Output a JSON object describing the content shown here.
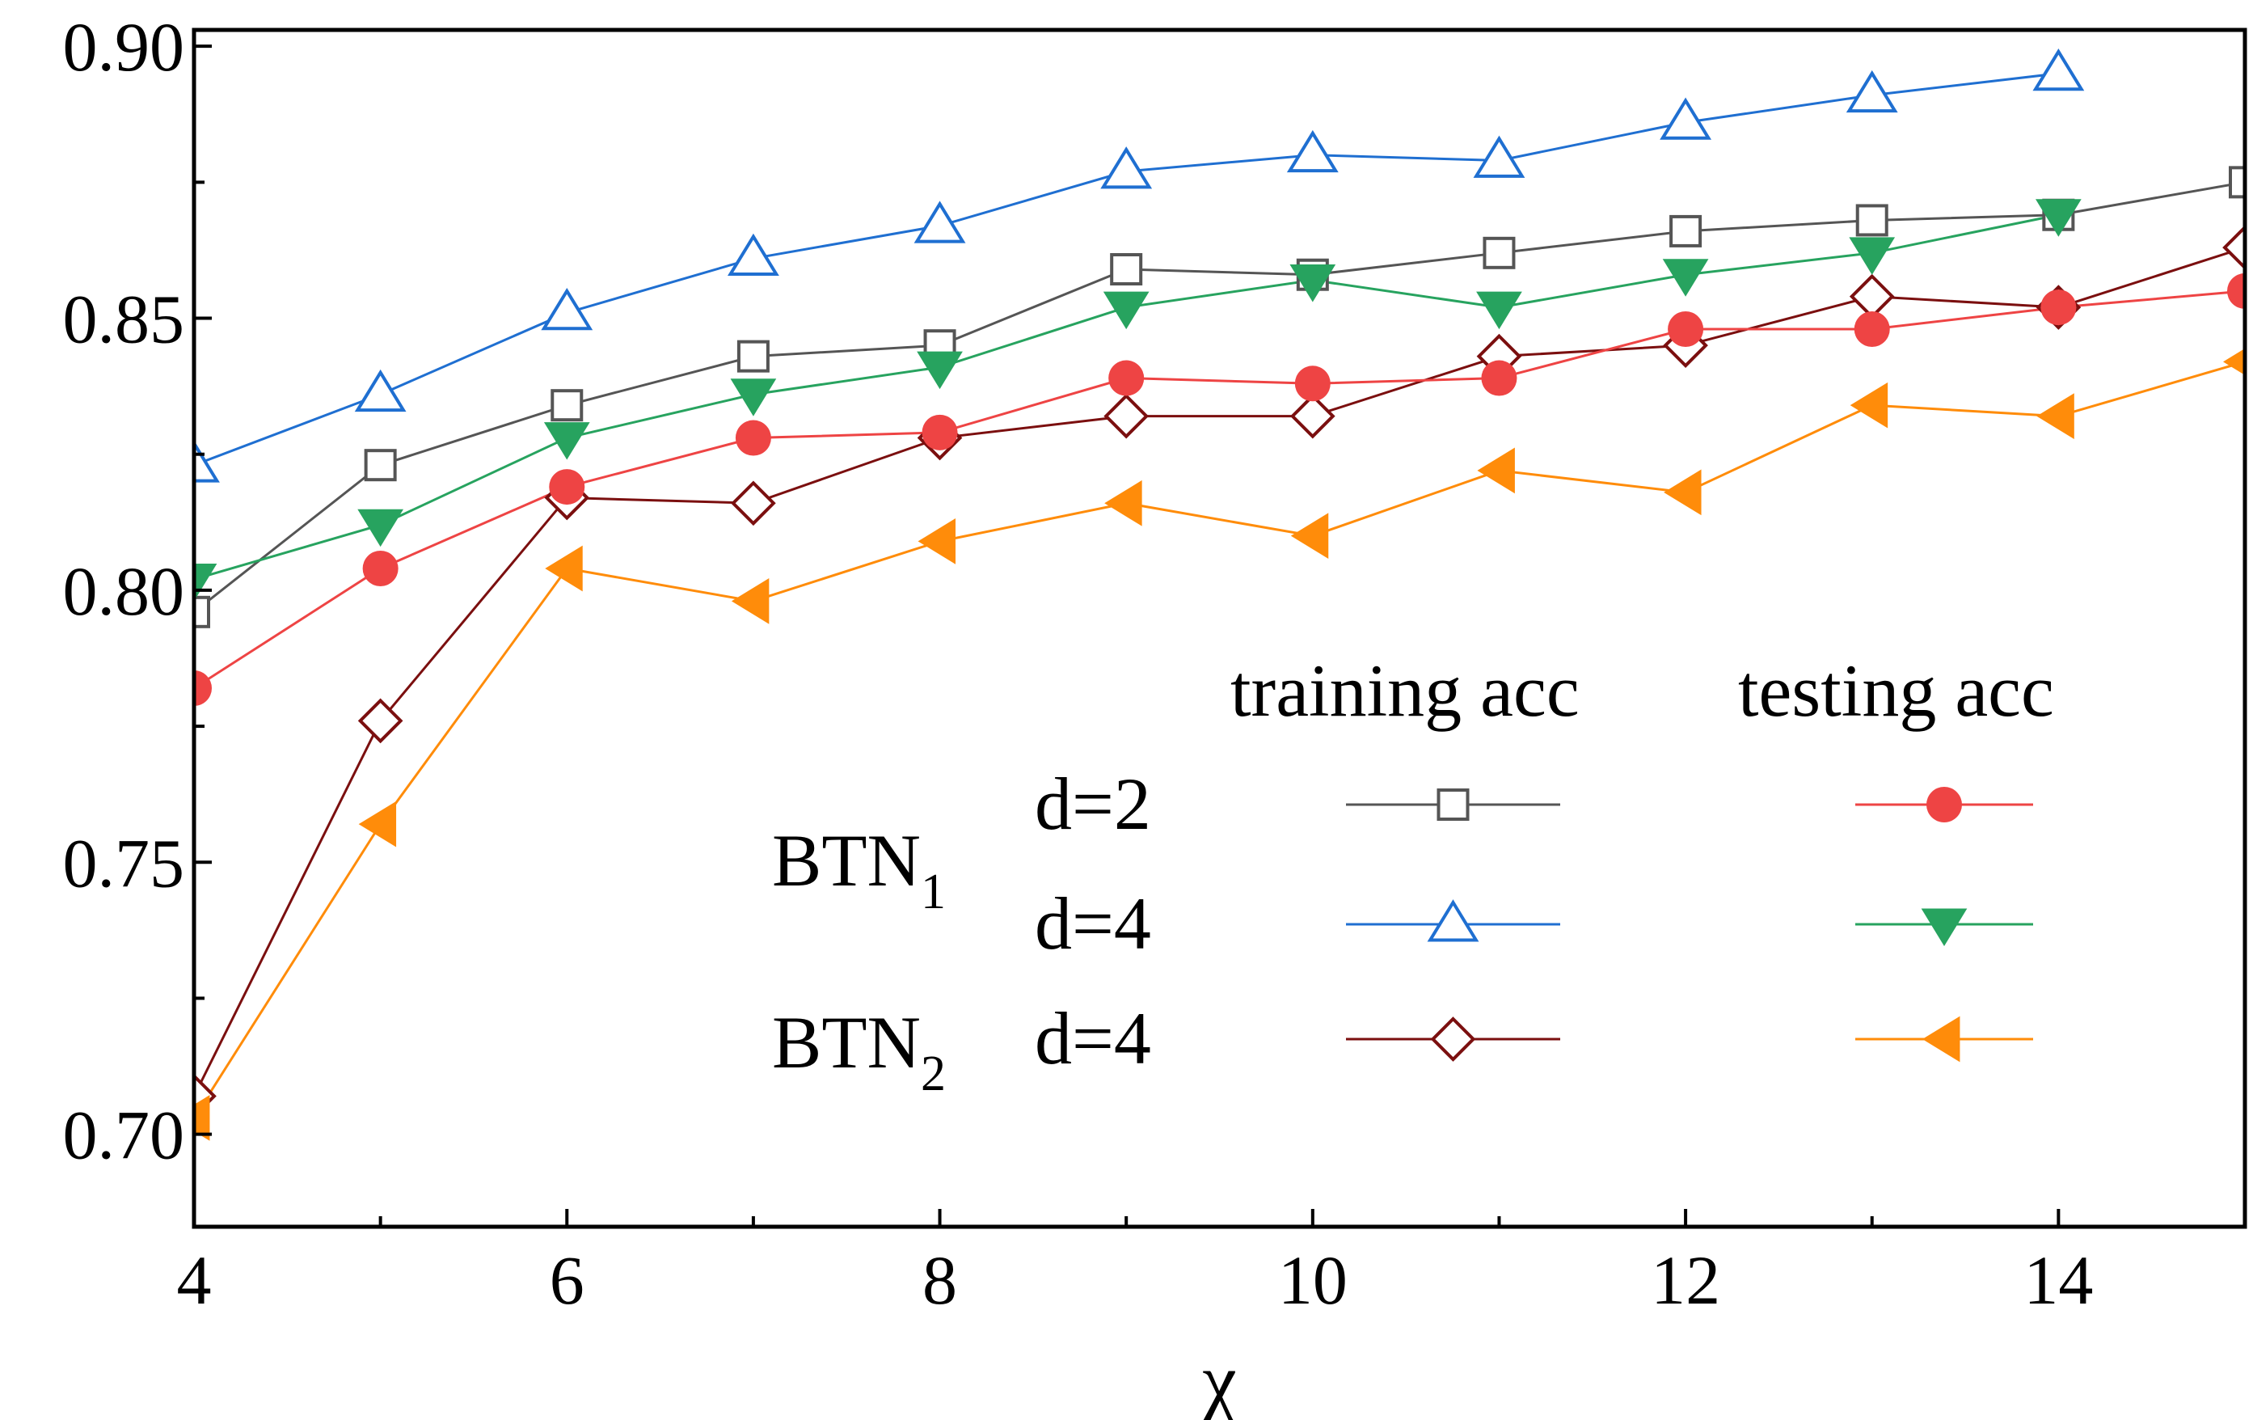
{
  "chart_data": {
    "type": "line",
    "title": "",
    "xlabel": "χ",
    "ylabel": "",
    "xlim": [
      4,
      15
    ],
    "ylim": [
      0.683,
      0.903
    ],
    "grid": false,
    "xticks": [
      4,
      6,
      8,
      10,
      12,
      14
    ],
    "xtick_labels": [
      "4",
      "6",
      "8",
      "10",
      "12",
      "14"
    ],
    "yticks": [
      0.7,
      0.75,
      0.8,
      0.85,
      0.9
    ],
    "ytick_labels": [
      "0.70",
      "0.75",
      "0.80",
      "0.85",
      "0.90"
    ],
    "x": [
      4,
      5,
      6,
      7,
      8,
      9,
      10,
      11,
      12,
      13,
      14,
      15
    ],
    "series": [
      {
        "name": "BTN1 d=2 training acc",
        "marker": "square-open",
        "color": "#555555",
        "x": [
          4,
          5,
          6,
          7,
          8,
          9,
          10,
          11,
          12,
          13,
          14,
          15
        ],
        "values": [
          0.796,
          0.823,
          0.834,
          0.843,
          0.845,
          0.859,
          0.858,
          0.862,
          0.866,
          0.868,
          0.869,
          0.875
        ]
      },
      {
        "name": "BTN1 d=4 training acc",
        "marker": "triangle-up-open",
        "color": "#1f6fd1",
        "x": [
          4,
          5,
          6,
          7,
          8,
          9,
          10,
          11,
          12,
          13,
          14
        ],
        "values": [
          0.823,
          0.836,
          0.851,
          0.861,
          0.867,
          0.877,
          0.88,
          0.879,
          0.886,
          0.891,
          0.895
        ]
      },
      {
        "name": "BTN2 d=4 training acc",
        "marker": "diamond-open",
        "color": "#7b0f0f",
        "x": [
          4,
          5,
          6,
          7,
          8,
          9,
          10,
          11,
          12,
          13,
          14,
          15
        ],
        "values": [
          0.707,
          0.776,
          0.817,
          0.816,
          0.828,
          0.832,
          0.832,
          0.843,
          0.845,
          0.854,
          0.852,
          0.863
        ]
      },
      {
        "name": "BTN1 d=2 testing acc",
        "marker": "circle-filled",
        "color": "#ee4444",
        "x": [
          4,
          5,
          6,
          7,
          8,
          9,
          10,
          11,
          12,
          13,
          14,
          15
        ],
        "values": [
          0.782,
          0.804,
          0.819,
          0.828,
          0.829,
          0.839,
          0.838,
          0.839,
          0.848,
          0.848,
          0.852,
          0.855
        ]
      },
      {
        "name": "BTN1 d=4 testing acc",
        "marker": "triangle-down-filled",
        "color": "#27a35f",
        "x": [
          4,
          5,
          6,
          7,
          8,
          9,
          10,
          11,
          12,
          13,
          14
        ],
        "values": [
          0.802,
          0.812,
          0.828,
          0.836,
          0.841,
          0.852,
          0.857,
          0.852,
          0.858,
          0.862,
          0.869
        ]
      },
      {
        "name": "BTN2 d=4 testing acc",
        "marker": "triangle-left-filled",
        "color": "#ff8c0a",
        "x": [
          4,
          5,
          6,
          7,
          8,
          9,
          10,
          11,
          12,
          13,
          14,
          15
        ],
        "values": [
          0.703,
          0.757,
          0.804,
          0.798,
          0.809,
          0.816,
          0.81,
          0.822,
          0.818,
          0.834,
          0.832,
          0.842
        ]
      }
    ],
    "legend": {
      "placement": "bottom-right",
      "column_headers": [
        "training acc",
        "testing acc"
      ],
      "groups": [
        {
          "name": "BTN",
          "subscript": "1",
          "rows": [
            "d=2",
            "d=4"
          ]
        },
        {
          "name": "BTN",
          "subscript": "2",
          "rows": [
            "d=4"
          ]
        }
      ],
      "row_series": [
        {
          "row": "d=2",
          "training": 0,
          "testing": 3
        },
        {
          "row": "d=4",
          "training": 1,
          "testing": 4
        },
        {
          "row": "d=4",
          "training": 2,
          "testing": 5
        }
      ]
    }
  }
}
